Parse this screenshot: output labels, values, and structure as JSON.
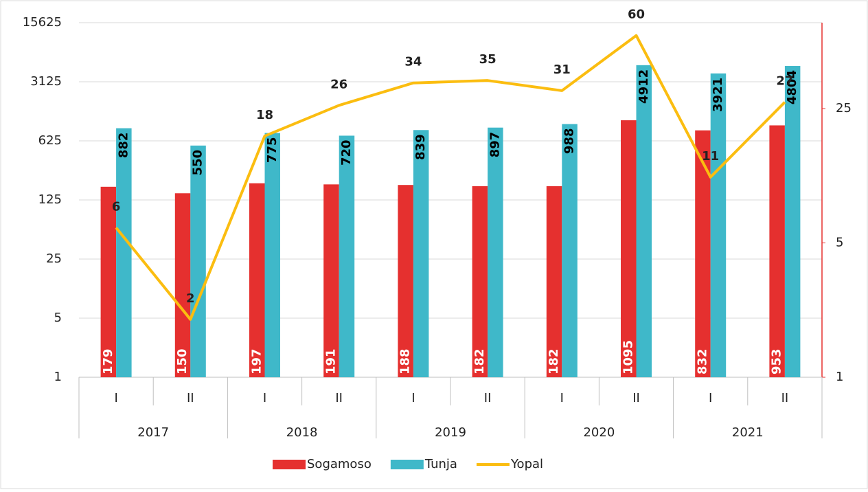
{
  "chart_data": {
    "type": "bar-line",
    "groups": [
      "2017",
      "2018",
      "2019",
      "2020",
      "2021"
    ],
    "categories": [
      "I",
      "II",
      "I",
      "II",
      "I",
      "II",
      "I",
      "II",
      "I",
      "II"
    ],
    "series": [
      {
        "name": "Sogamoso",
        "type": "bar",
        "color": "#e5302f",
        "values": [
          179,
          150,
          197,
          191,
          188,
          182,
          182,
          1095,
          832,
          953
        ]
      },
      {
        "name": "Tunja",
        "type": "bar",
        "color": "#3fb8c9",
        "values": [
          882,
          550,
          775,
          720,
          839,
          897,
          988,
          4912,
          3921,
          4804
        ]
      },
      {
        "name": "Yopal",
        "type": "line",
        "axis": "y2",
        "color": "#fbbd10",
        "values": [
          6,
          2,
          18,
          26,
          34,
          35,
          31,
          60,
          11,
          27
        ]
      }
    ],
    "ylim": [
      1,
      15625
    ],
    "yticks": [
      1,
      5,
      25,
      125,
      625,
      3125,
      15625
    ],
    "ylog": true,
    "y2lim": [
      1,
      70
    ],
    "y2ticks": [
      1,
      5,
      25
    ],
    "y2log": true,
    "grid": true,
    "legend": "bottom"
  }
}
